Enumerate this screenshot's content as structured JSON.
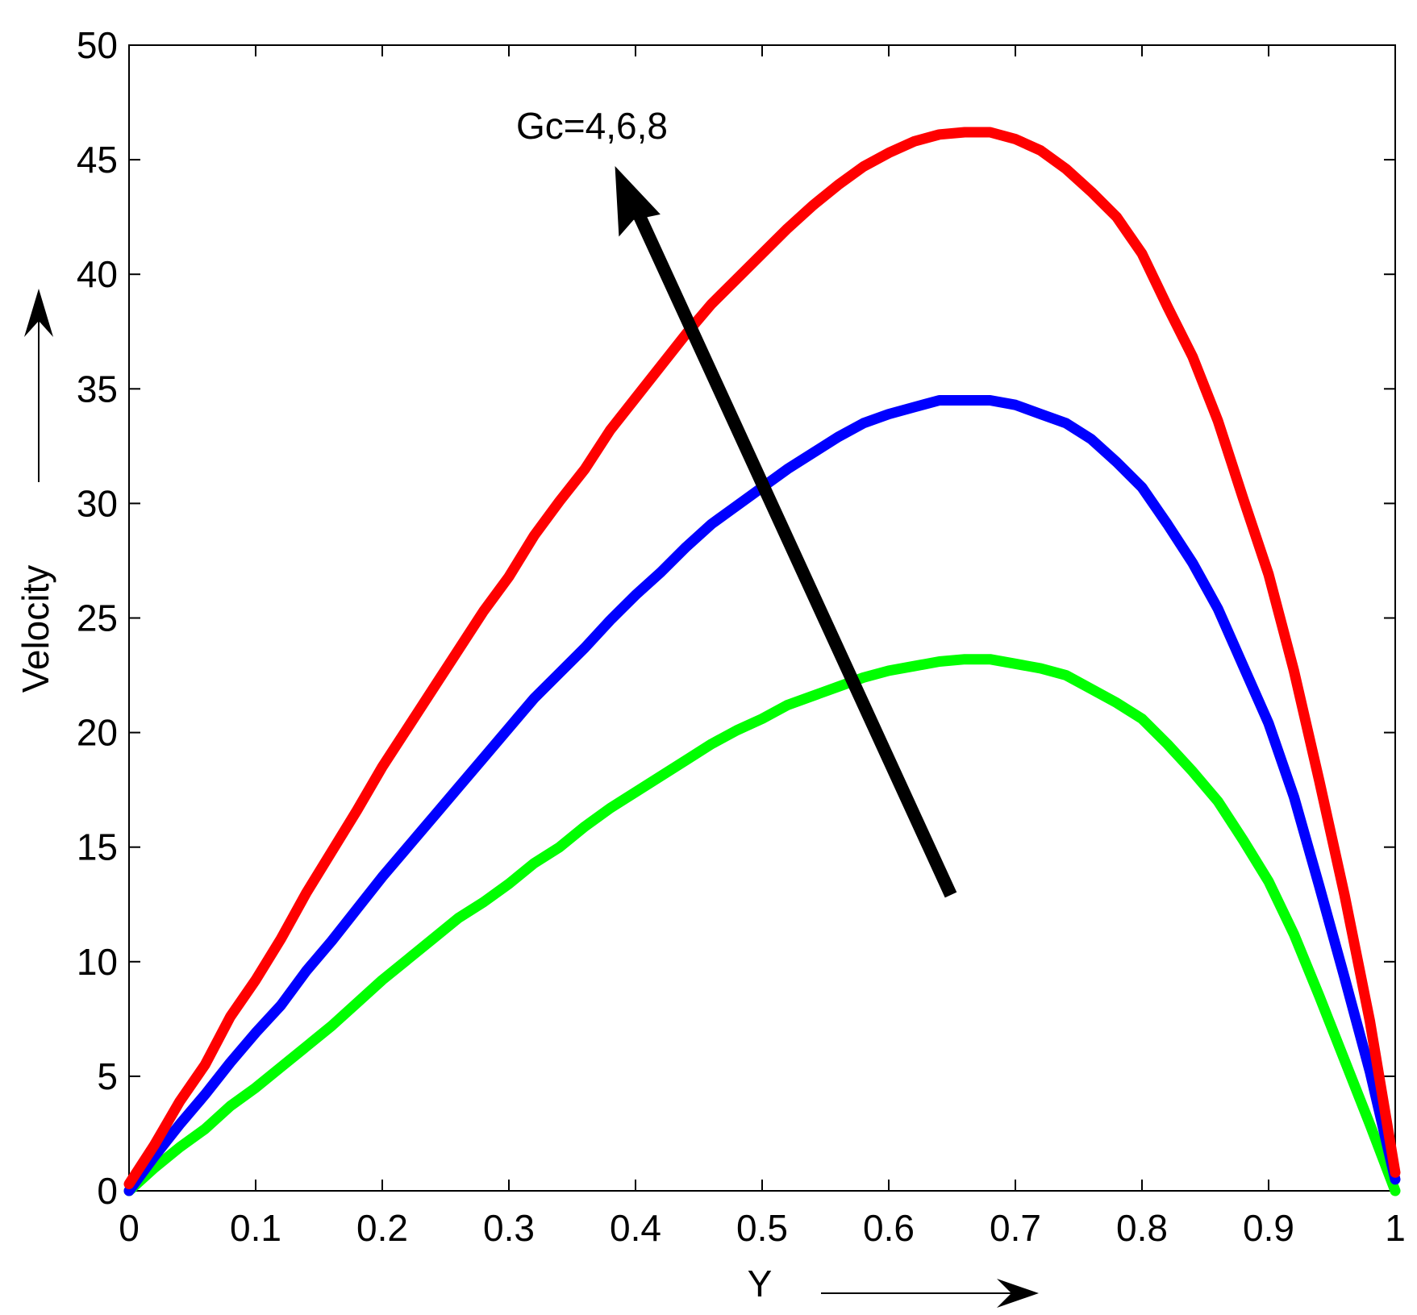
{
  "chart_data": {
    "type": "line",
    "title": "",
    "xlabel": "Y",
    "ylabel": "Velocity",
    "xlim": [
      0,
      1
    ],
    "ylim": [
      0,
      50
    ],
    "grid": false,
    "x_ticks": [
      "0",
      "0.1",
      "0.2",
      "0.3",
      "0.4",
      "0.5",
      "0.6",
      "0.7",
      "0.8",
      "0.9",
      "1"
    ],
    "y_ticks": [
      "0",
      "5",
      "10",
      "15",
      "20",
      "25",
      "30",
      "35",
      "40",
      "45",
      "50"
    ],
    "annotation": "Gc=4,6,8",
    "colors": {
      "series_1": "#00ff00",
      "series_2": "#0000ff",
      "series_3": "#ff0000",
      "arrow": "#000000"
    },
    "series": [
      {
        "color": "#00ff00",
        "x": [
          0,
          0.02,
          0.04,
          0.06,
          0.08,
          0.1,
          0.12,
          0.14,
          0.16,
          0.18,
          0.2,
          0.22,
          0.24,
          0.26,
          0.28,
          0.3,
          0.32,
          0.34,
          0.36,
          0.38,
          0.4,
          0.42,
          0.44,
          0.46,
          0.48,
          0.5,
          0.52,
          0.54,
          0.56,
          0.58,
          0.6,
          0.62,
          0.64,
          0.66,
          0.68,
          0.7,
          0.72,
          0.74,
          0.76,
          0.78,
          0.8,
          0.82,
          0.84,
          0.86,
          0.88,
          0.9,
          0.92,
          0.94,
          0.96,
          0.98,
          1.0
        ],
        "y": [
          0,
          1.0,
          1.9,
          2.7,
          3.7,
          4.5,
          5.4,
          6.3,
          7.2,
          8.2,
          9.2,
          10.1,
          11.0,
          11.9,
          12.6,
          13.4,
          14.3,
          15.0,
          15.9,
          16.7,
          17.4,
          18.1,
          18.8,
          19.5,
          20.1,
          20.6,
          21.2,
          21.6,
          22.0,
          22.4,
          22.7,
          22.9,
          23.1,
          23.2,
          23.2,
          23.0,
          22.8,
          22.5,
          21.9,
          21.3,
          20.6,
          19.5,
          18.3,
          17.0,
          15.3,
          13.5,
          11.2,
          8.5,
          5.7,
          2.9,
          0
        ]
      },
      {
        "color": "#0000ff",
        "x": [
          0,
          0.02,
          0.04,
          0.06,
          0.08,
          0.1,
          0.12,
          0.14,
          0.16,
          0.18,
          0.2,
          0.22,
          0.24,
          0.26,
          0.28,
          0.3,
          0.32,
          0.34,
          0.36,
          0.38,
          0.4,
          0.42,
          0.44,
          0.46,
          0.48,
          0.5,
          0.52,
          0.54,
          0.56,
          0.58,
          0.6,
          0.62,
          0.64,
          0.66,
          0.68,
          0.7,
          0.72,
          0.74,
          0.76,
          0.78,
          0.8,
          0.82,
          0.84,
          0.86,
          0.88,
          0.9,
          0.92,
          0.94,
          0.96,
          0.98,
          1.0
        ],
        "y": [
          0,
          1.5,
          2.9,
          4.2,
          5.6,
          6.9,
          8.1,
          9.6,
          10.9,
          12.3,
          13.7,
          15.0,
          16.3,
          17.6,
          18.9,
          20.2,
          21.5,
          22.6,
          23.7,
          24.9,
          26.0,
          27.0,
          28.1,
          29.1,
          29.9,
          30.7,
          31.5,
          32.2,
          32.9,
          33.5,
          33.9,
          34.2,
          34.5,
          34.5,
          34.5,
          34.3,
          33.9,
          33.5,
          32.8,
          31.8,
          30.7,
          29.1,
          27.4,
          25.4,
          22.9,
          20.4,
          17.2,
          13.3,
          9.3,
          5.2,
          0.5
        ]
      },
      {
        "color": "#ff0000",
        "x": [
          0,
          0.02,
          0.04,
          0.06,
          0.08,
          0.1,
          0.12,
          0.14,
          0.16,
          0.18,
          0.2,
          0.22,
          0.24,
          0.26,
          0.28,
          0.3,
          0.32,
          0.34,
          0.36,
          0.38,
          0.4,
          0.42,
          0.44,
          0.46,
          0.48,
          0.5,
          0.52,
          0.54,
          0.56,
          0.58,
          0.6,
          0.62,
          0.64,
          0.66,
          0.68,
          0.7,
          0.72,
          0.74,
          0.76,
          0.78,
          0.8,
          0.82,
          0.84,
          0.86,
          0.88,
          0.9,
          0.92,
          0.94,
          0.96,
          0.98,
          1.0
        ],
        "y": [
          0.3,
          2.0,
          3.9,
          5.5,
          7.6,
          9.2,
          11.0,
          13.0,
          14.8,
          16.6,
          18.5,
          20.2,
          21.9,
          23.6,
          25.3,
          26.8,
          28.6,
          30.1,
          31.5,
          33.2,
          34.6,
          36.0,
          37.4,
          38.7,
          39.8,
          40.9,
          42.0,
          43.0,
          43.9,
          44.7,
          45.3,
          45.8,
          46.1,
          46.2,
          46.2,
          45.9,
          45.4,
          44.6,
          43.6,
          42.5,
          40.9,
          38.6,
          36.4,
          33.6,
          30.2,
          26.9,
          22.7,
          17.9,
          12.9,
          7.4,
          0.8
        ]
      }
    ]
  }
}
